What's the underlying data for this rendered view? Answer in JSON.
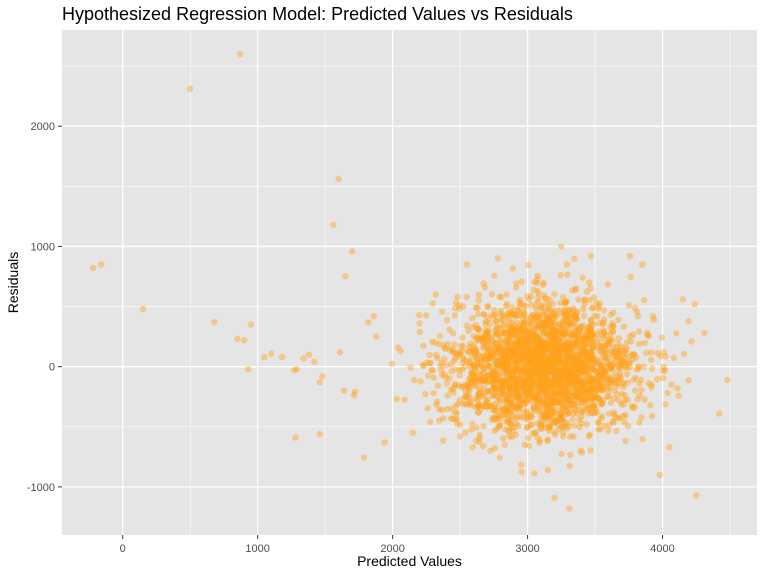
{
  "chart_data": {
    "type": "scatter",
    "title": "Hypothesized Regression Model: Predicted Values vs Residuals",
    "xlabel": "Predicted Values",
    "ylabel": "Residuals",
    "xlim": [
      -450,
      4700
    ],
    "ylim": [
      -1400,
      2800
    ],
    "x_ticks": [
      0,
      1000,
      2000,
      3000,
      4000
    ],
    "y_ticks": [
      -1000,
      0,
      1000,
      2000
    ],
    "x_tick_labels": [
      "0",
      "1000",
      "2000",
      "3000",
      "4000"
    ],
    "y_tick_labels": [
      "-1000",
      "0",
      "1000",
      "2000"
    ],
    "grid": true,
    "point_color": "#FFA21C",
    "point_alpha": 0.45,
    "panel_background": "#E5E5E5",
    "grid_color": "#FFFFFF",
    "points": {
      "x": [
        -220,
        -160,
        150,
        500,
        870,
        680,
        850,
        900,
        950,
        930,
        1050,
        1100,
        1180,
        1270,
        1340,
        1380,
        1290,
        1420,
        1460,
        1480,
        1560,
        1600,
        1610,
        1640,
        1650,
        1700,
        1720,
        1820,
        1860,
        1280,
        1460,
        4480,
        4420,
        4250,
        4310,
        4240,
        4150,
        4050,
        3980,
        3310,
        3200,
        3250,
        2780,
        3470,
        3290,
        2550,
        2480,
        2320,
        3760,
        3850,
        3150,
        1940,
        1880,
        2060,
        2150
      ],
      "y": [
        820,
        850,
        480,
        2310,
        2600,
        370,
        230,
        220,
        350,
        -20,
        80,
        110,
        80,
        -30,
        70,
        100,
        -20,
        40,
        -130,
        -80,
        1180,
        1560,
        120,
        -200,
        750,
        960,
        -210,
        370,
        420,
        -590,
        -560,
        -110,
        -390,
        -1070,
        280,
        520,
        560,
        -670,
        -900,
        -1180,
        -1090,
        1000,
        900,
        920,
        850,
        850,
        580,
        600,
        920,
        850,
        -860,
        -630,
        250,
        130,
        -550
      ],
      "bulk": {
        "count": 2600,
        "x_mean": 3120,
        "x_sd": 340,
        "y_mean": 0,
        "y_sd": 270
      }
    }
  }
}
